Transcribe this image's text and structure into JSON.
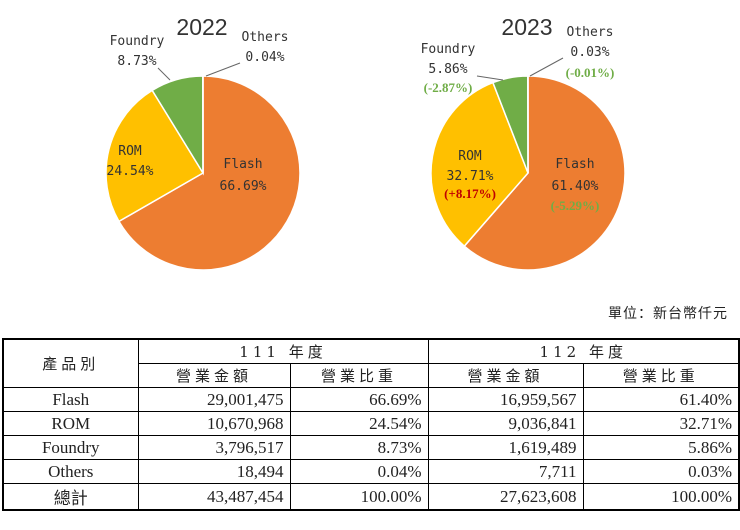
{
  "colors": {
    "Flash": "#ED7D31",
    "ROM": "#FFC000",
    "Foundry": "#70AD47",
    "Others": "#4472C4",
    "increase": "#C00000",
    "decrease": "#70AD47"
  },
  "chart_data": [
    {
      "type": "pie",
      "title": "2022",
      "slices": [
        {
          "label": "Flash",
          "value": 66.69,
          "text": "66.69%"
        },
        {
          "label": "ROM",
          "value": 24.54,
          "text": "24.54%"
        },
        {
          "label": "Foundry",
          "value": 8.73,
          "text": "8.73%"
        },
        {
          "label": "Others",
          "value": 0.04,
          "text": "0.04%"
        }
      ]
    },
    {
      "type": "pie",
      "title": "2023",
      "slices": [
        {
          "label": "Flash",
          "value": 61.4,
          "text": "61.40%",
          "change": "(-5.29%)"
        },
        {
          "label": "ROM",
          "value": 32.71,
          "text": "32.71%",
          "change": "(+8.17%)"
        },
        {
          "label": "Foundry",
          "value": 5.86,
          "text": "5.86%",
          "change": "(-2.87%)"
        },
        {
          "label": "Others",
          "value": 0.03,
          "text": "0.03%",
          "change": "(-0.01%)"
        }
      ]
    }
  ],
  "unit_label": "單位：新台幣仟元",
  "table": {
    "product_header": "產品別",
    "year1_header": "111 年度",
    "year2_header": "112 年度",
    "revenue_header": "營業金額",
    "share_header": "營業比重",
    "rows": [
      {
        "product": "Flash",
        "rev1": "29,001,475",
        "share1": "66.69%",
        "rev2": "16,959,567",
        "share2": "61.40%"
      },
      {
        "product": "ROM",
        "rev1": "10,670,968",
        "share1": "24.54%",
        "rev2": "9,036,841",
        "share2": "32.71%"
      },
      {
        "product": "Foundry",
        "rev1": "3,796,517",
        "share1": "8.73%",
        "rev2": "1,619,489",
        "share2": "5.86%"
      },
      {
        "product": "Others",
        "rev1": "18,494",
        "share1": "0.04%",
        "rev2": "7,711",
        "share2": "0.03%"
      },
      {
        "product": "總計",
        "rev1": "43,487,454",
        "share1": "100.00%",
        "rev2": "27,623,608",
        "share2": "100.00%"
      }
    ]
  }
}
